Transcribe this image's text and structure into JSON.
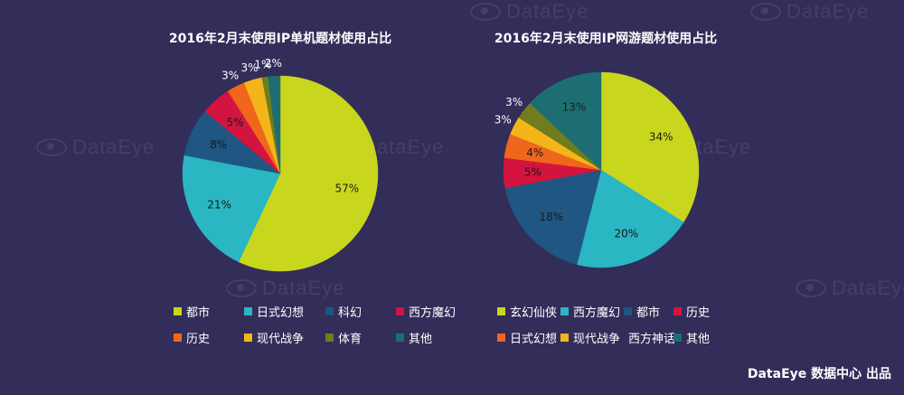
{
  "footer": "DataEye 数据中心 出品",
  "watermark": "DataEye",
  "chart_data": [
    {
      "type": "pie",
      "title": "2016年2月末使用IP单机题材使用占比",
      "slices": [
        {
          "label": "都市",
          "value": 57,
          "text": "57%",
          "color": "#c9d61e"
        },
        {
          "label": "日式幻想",
          "value": 21,
          "text": "21%",
          "color": "#2ab6c3"
        },
        {
          "label": "科幻",
          "value": 8,
          "text": "8%",
          "color": "#1f5682"
        },
        {
          "label": "西方魔幻",
          "value": 5,
          "text": "5%",
          "color": "#d3143e"
        },
        {
          "label": "历史",
          "value": 3,
          "text": "3%",
          "color": "#f0661c"
        },
        {
          "label": "现代战争",
          "value": 3,
          "text": "3%",
          "color": "#f4b51b"
        },
        {
          "label": "体育",
          "value": 1,
          "text": "1%",
          "color": "#6f7d1d"
        },
        {
          "label": "其他",
          "value": 2,
          "text": "2%",
          "color": "#1d6e72"
        }
      ],
      "legend_placement": "bottom"
    },
    {
      "type": "pie",
      "title": "2016年2月末使用IP网游题材使用占比",
      "slices": [
        {
          "label": "玄幻仙侠",
          "value": 34,
          "text": "34%",
          "color": "#c9d61e"
        },
        {
          "label": "西方魔幻",
          "value": 20,
          "text": "20%",
          "color": "#2ab6c3"
        },
        {
          "label": "都市",
          "value": 18,
          "text": "18%",
          "color": "#1f5682"
        },
        {
          "label": "历史",
          "value": 5,
          "text": "5%",
          "color": "#d3143e"
        },
        {
          "label": "日式幻想",
          "value": 4,
          "text": "4%",
          "color": "#f0661c"
        },
        {
          "label": "现代战争",
          "value": 3,
          "text": "3%",
          "color": "#f4b51b"
        },
        {
          "label": "西方神话",
          "value": 3,
          "text": "3%",
          "color": "#6f7d1d"
        },
        {
          "label": "其他",
          "value": 13,
          "text": "13%",
          "color": "#1d6e72"
        }
      ],
      "legend_placement": "bottom"
    }
  ]
}
